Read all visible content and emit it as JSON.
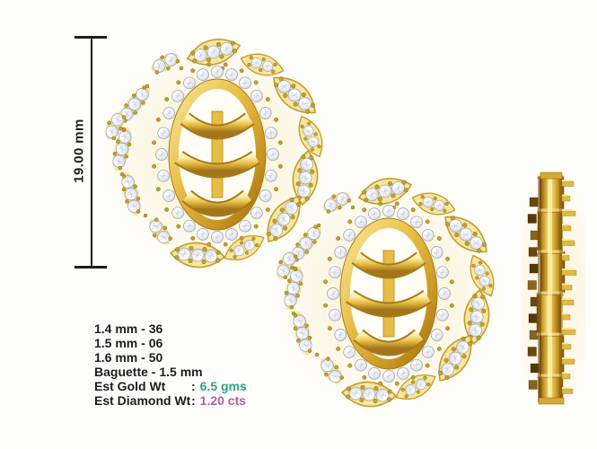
{
  "ruler": {
    "label": "19.00 mm"
  },
  "specs": {
    "stones": [
      "1.4 mm - 36",
      "1.5 mm - 06",
      "1.6 mm - 50",
      "Baguette - 1.5 mm"
    ],
    "gold_weight": {
      "label": "Est Gold Wt",
      "colon": ":",
      "value": "6.5 gms"
    },
    "diamond_weight": {
      "label": "Est Diamond Wt",
      "colon": ":",
      "value": "1.20 cts"
    }
  },
  "images": {
    "front_primary": "earring-front-view",
    "front_secondary": "earring-front-view",
    "side": "earring-side-profile-view"
  },
  "colors": {
    "background": "#fdfdfc",
    "text": "#1d1d1d",
    "gold": "#e8bf44",
    "gold_dark": "#8f6210",
    "gold_light": "#f8e9a4",
    "diamond": "#f1f2f6",
    "gold_value_accent": "#2fa482",
    "diamond_value_accent": "#ab62a2"
  }
}
